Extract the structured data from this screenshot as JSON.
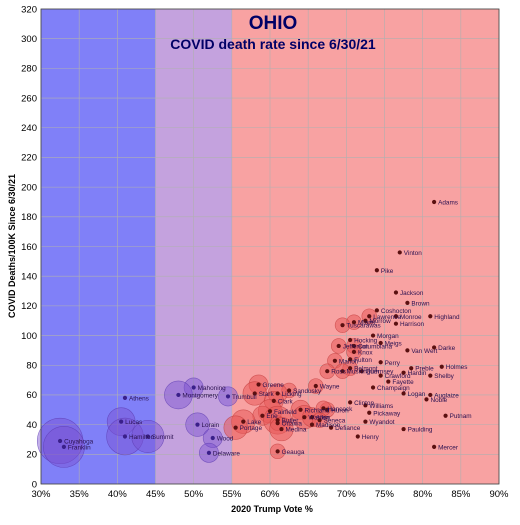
{
  "chart_data": {
    "type": "scatter",
    "title": "OHIO",
    "subtitle": "COVID death rate since 6/30/21",
    "xlabel": "2020 Trump Vote %",
    "ylabel": "COVID Deaths/100K Since 6/30/21",
    "xlim": [
      30,
      90
    ],
    "ylim": [
      0,
      320
    ],
    "x_ticks": [
      "30%",
      "35%",
      "40%",
      "45%",
      "50%",
      "55%",
      "60%",
      "65%",
      "70%",
      "75%",
      "80%",
      "85%",
      "90%"
    ],
    "x_tick_values": [
      30,
      35,
      40,
      45,
      50,
      55,
      60,
      65,
      70,
      75,
      80,
      85,
      90
    ],
    "y_ticks": [
      "0",
      "20",
      "40",
      "60",
      "80",
      "100",
      "120",
      "140",
      "160",
      "180",
      "200",
      "220",
      "240",
      "260",
      "280",
      "300",
      "320"
    ],
    "y_tick_values": [
      0,
      20,
      40,
      60,
      80,
      100,
      120,
      140,
      160,
      180,
      200,
      220,
      240,
      260,
      280,
      300,
      320
    ],
    "grid": true,
    "bands": [
      {
        "from": 30,
        "to": 45,
        "color": "#8080f8"
      },
      {
        "from": 45,
        "to": 55,
        "color": "#c4a2de"
      },
      {
        "from": 55,
        "to": 90,
        "color": "#f8a2a2"
      }
    ],
    "colors": {
      "dem_bubble": "#7a4fd0",
      "rep_bubble": "#e85a5a",
      "marker": "#5a1010",
      "label": "#2a1050",
      "title": "#000066",
      "subtitle": "#000066"
    },
    "points": [
      {
        "name": "Adams",
        "x": 81.5,
        "y": 190,
        "size": 1
      },
      {
        "name": "Vinton",
        "x": 77,
        "y": 156,
        "size": 1
      },
      {
        "name": "Pike",
        "x": 74,
        "y": 144,
        "size": 1
      },
      {
        "name": "Jackson",
        "x": 76.5,
        "y": 129,
        "size": 1
      },
      {
        "name": "Brown",
        "x": 78,
        "y": 122,
        "size": 1
      },
      {
        "name": "Coshocton",
        "x": 74,
        "y": 117,
        "size": 1
      },
      {
        "name": "Highland",
        "x": 81,
        "y": 113,
        "size": 1
      },
      {
        "name": "Lawrence",
        "x": 73,
        "y": 113,
        "size": 2
      },
      {
        "name": "Monroe",
        "x": 76.5,
        "y": 113,
        "size": 1
      },
      {
        "name": "Morrow",
        "x": 72.5,
        "y": 110,
        "size": 1
      },
      {
        "name": "Miami",
        "x": 71,
        "y": 109,
        "size": 2
      },
      {
        "name": "Harrison",
        "x": 76.5,
        "y": 108,
        "size": 1
      },
      {
        "name": "Tuscarawas",
        "x": 69.5,
        "y": 107,
        "size": 2
      },
      {
        "name": "Morgan",
        "x": 73.5,
        "y": 100,
        "size": 1
      },
      {
        "name": "Hocking",
        "x": 70.5,
        "y": 97,
        "size": 1
      },
      {
        "name": "Meigs",
        "x": 74.5,
        "y": 95,
        "size": 1
      },
      {
        "name": "Jefferson",
        "x": 69,
        "y": 93,
        "size": 2
      },
      {
        "name": "Columbiana",
        "x": 71,
        "y": 93,
        "size": 2
      },
      {
        "name": "Darke",
        "x": 81.5,
        "y": 92,
        "size": 1
      },
      {
        "name": "Knox",
        "x": 71,
        "y": 89,
        "size": 2
      },
      {
        "name": "Van Wert",
        "x": 78,
        "y": 90,
        "size": 1
      },
      {
        "name": "Fulton",
        "x": 70.5,
        "y": 84,
        "size": 1
      },
      {
        "name": "Marion",
        "x": 68.5,
        "y": 83,
        "size": 2
      },
      {
        "name": "Perry",
        "x": 74.5,
        "y": 82,
        "size": 1
      },
      {
        "name": "Holmes",
        "x": 82.5,
        "y": 79,
        "size": 1
      },
      {
        "name": "Belmont",
        "x": 70.5,
        "y": 78,
        "size": 2
      },
      {
        "name": "Preble",
        "x": 78.5,
        "y": 78,
        "size": 1
      },
      {
        "name": "Ross",
        "x": 67.5,
        "y": 76,
        "size": 2
      },
      {
        "name": "Muskingum",
        "x": 69.5,
        "y": 76,
        "size": 2
      },
      {
        "name": "Guernsey",
        "x": 72,
        "y": 76,
        "size": 1
      },
      {
        "name": "Hardin",
        "x": 77.5,
        "y": 75,
        "size": 1
      },
      {
        "name": "Crawford",
        "x": 74.5,
        "y": 73,
        "size": 1
      },
      {
        "name": "Shelby",
        "x": 81,
        "y": 73,
        "size": 1
      },
      {
        "name": "Fayette",
        "x": 75.5,
        "y": 69,
        "size": 1
      },
      {
        "name": "Wayne",
        "x": 66,
        "y": 66,
        "size": 2
      },
      {
        "name": "Champaign",
        "x": 73.5,
        "y": 65,
        "size": 1
      },
      {
        "name": "Greene",
        "x": 58.5,
        "y": 67,
        "size": 3
      },
      {
        "name": "Mahoning",
        "x": 50,
        "y": 65,
        "size": 3
      },
      {
        "name": "Sandusky",
        "x": 62.5,
        "y": 63,
        "size": 2
      },
      {
        "name": "Logan",
        "x": 77.5,
        "y": 61,
        "size": 1
      },
      {
        "name": "Auglaize",
        "x": 81,
        "y": 60,
        "size": 1
      },
      {
        "name": "Stark",
        "x": 58,
        "y": 61,
        "size": 4
      },
      {
        "name": "Licking",
        "x": 61,
        "y": 61,
        "size": 3
      },
      {
        "name": "Montgomery",
        "x": 48,
        "y": 60,
        "size": 5
      },
      {
        "name": "Trumbull",
        "x": 54.5,
        "y": 59,
        "size": 3
      },
      {
        "name": "Noble",
        "x": 80.5,
        "y": 57,
        "size": 1
      },
      {
        "name": "Athens",
        "x": 41,
        "y": 58,
        "size": 1
      },
      {
        "name": "Clark",
        "x": 60.5,
        "y": 56,
        "size": 3
      },
      {
        "name": "Clinton",
        "x": 70.5,
        "y": 55,
        "size": 1
      },
      {
        "name": "Williams",
        "x": 72.5,
        "y": 53,
        "size": 1
      },
      {
        "name": "Huron",
        "x": 67.5,
        "y": 50,
        "size": 2
      },
      {
        "name": "Hancock",
        "x": 67,
        "y": 51,
        "size": 2
      },
      {
        "name": "Richland",
        "x": 64,
        "y": 50,
        "size": 3
      },
      {
        "name": "Fairfield",
        "x": 60,
        "y": 49,
        "size": 4
      },
      {
        "name": "Pickaway",
        "x": 73,
        "y": 48,
        "size": 1
      },
      {
        "name": "Putnam",
        "x": 83,
        "y": 46,
        "size": 1
      },
      {
        "name": "Lorain",
        "x": 50.5,
        "y": 40,
        "size": 4
      },
      {
        "name": "Lucas",
        "x": 40.5,
        "y": 42,
        "size": 5
      },
      {
        "name": "Wood",
        "x": 52.5,
        "y": 31,
        "size": 3
      },
      {
        "name": "Warren",
        "x": 64.5,
        "y": 45,
        "size": 4
      },
      {
        "name": "Allen",
        "x": 65.5,
        "y": 45,
        "size": 3
      },
      {
        "name": "Seneca",
        "x": 66.5,
        "y": 43,
        "size": 2
      },
      {
        "name": "Erie",
        "x": 59,
        "y": 46,
        "size": 3
      },
      {
        "name": "Lake",
        "x": 56.5,
        "y": 42,
        "size": 4
      },
      {
        "name": "Portage",
        "x": 55.5,
        "y": 38,
        "size": 4
      },
      {
        "name": "Butler",
        "x": 61,
        "y": 43,
        "size": 5
      },
      {
        "name": "Ottawa",
        "x": 61,
        "y": 41,
        "size": 2
      },
      {
        "name": "Wyandot",
        "x": 72.5,
        "y": 42,
        "size": 1
      },
      {
        "name": "Madison",
        "x": 65.5,
        "y": 40,
        "size": 1
      },
      {
        "name": "Defiance",
        "x": 68,
        "y": 38,
        "size": 1
      },
      {
        "name": "Medina",
        "x": 61.5,
        "y": 37,
        "size": 4
      },
      {
        "name": "Paulding",
        "x": 77.5,
        "y": 37,
        "size": 1
      },
      {
        "name": "Henry",
        "x": 71.5,
        "y": 32,
        "size": 1
      },
      {
        "name": "Hamilton",
        "x": 41,
        "y": 32,
        "size": 7
      },
      {
        "name": "Summit",
        "x": 44,
        "y": 32,
        "size": 6
      },
      {
        "name": "Cuyahoga",
        "x": 32.5,
        "y": 29,
        "size": 9
      },
      {
        "name": "Franklin",
        "x": 33,
        "y": 25,
        "size": 8
      },
      {
        "name": "Mercer",
        "x": 81.5,
        "y": 25,
        "size": 1
      },
      {
        "name": "Delaware",
        "x": 52,
        "y": 21,
        "size": 3
      },
      {
        "name": "Geauga",
        "x": 61,
        "y": 22,
        "size": 2
      }
    ]
  }
}
